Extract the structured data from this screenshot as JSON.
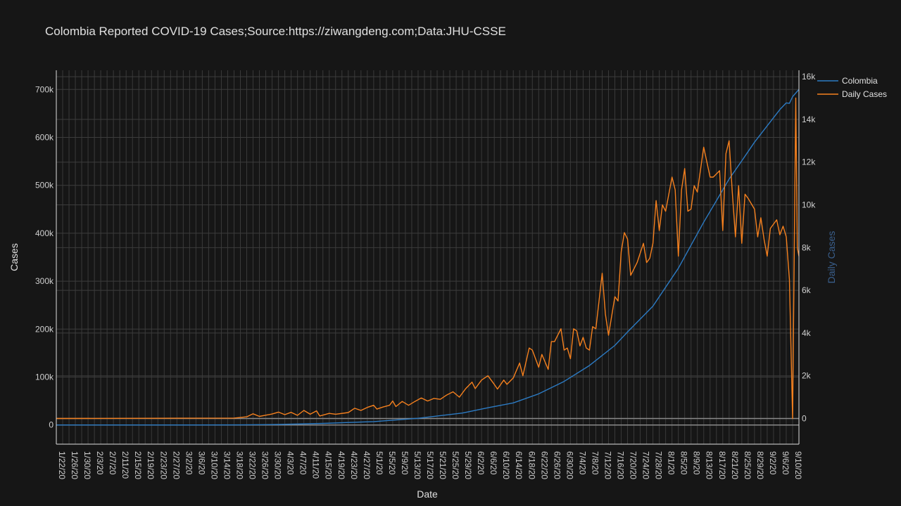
{
  "chart_data": {
    "type": "line",
    "title": "Colombia Reported COVID-19 Cases;Source:https://ziwangdeng.com;Data:JHU-CSSE",
    "xlabel": "Date",
    "ylabel": "Cases",
    "y2label": "Daily Cases",
    "x_start": "2020-01-22",
    "x_end": "2020-09-12",
    "x_tick_labels": [
      "1/22/20",
      "1/26/20",
      "1/30/20",
      "2/3/20",
      "2/7/20",
      "2/11/20",
      "2/15/20",
      "2/19/20",
      "2/23/20",
      "2/27/20",
      "3/2/20",
      "3/6/20",
      "3/10/20",
      "3/14/20",
      "3/18/20",
      "3/22/20",
      "3/26/20",
      "3/30/20",
      "4/3/20",
      "4/7/20",
      "4/11/20",
      "4/15/20",
      "4/19/20",
      "4/23/20",
      "4/27/20",
      "5/1/20",
      "5/5/20",
      "5/9/20",
      "5/13/20",
      "5/17/20",
      "5/21/20",
      "5/25/20",
      "5/29/20",
      "6/2/20",
      "6/6/20",
      "6/10/20",
      "6/14/20",
      "6/18/20",
      "6/22/20",
      "6/26/20",
      "6/30/20",
      "7/4/20",
      "7/8/20",
      "7/12/20",
      "7/16/20",
      "7/20/20",
      "7/24/20",
      "7/28/20",
      "8/1/20",
      "8/5/20",
      "8/9/20",
      "8/13/20",
      "8/17/20",
      "8/21/20",
      "8/25/20",
      "8/29/20",
      "9/2/20",
      "9/6/20",
      "9/10/20"
    ],
    "y_left_ticks": [
      {
        "v": 0,
        "label": "0"
      },
      {
        "v": 100000,
        "label": "100k"
      },
      {
        "v": 200000,
        "label": "200k"
      },
      {
        "v": 300000,
        "label": "300k"
      },
      {
        "v": 400000,
        "label": "400k"
      },
      {
        "v": 500000,
        "label": "500k"
      },
      {
        "v": 600000,
        "label": "600k"
      },
      {
        "v": 700000,
        "label": "700k"
      }
    ],
    "y_right_ticks": [
      {
        "v": 0,
        "label": "0"
      },
      {
        "v": 2000,
        "label": "2k"
      },
      {
        "v": 4000,
        "label": "4k"
      },
      {
        "v": 6000,
        "label": "6k"
      },
      {
        "v": 8000,
        "label": "8k"
      },
      {
        "v": 10000,
        "label": "10k"
      },
      {
        "v": 12000,
        "label": "12k"
      },
      {
        "v": 14000,
        "label": "14k"
      },
      {
        "v": 16000,
        "label": "16k"
      }
    ],
    "ylim": [
      -40000,
      740000
    ],
    "y2lim": [
      -1200,
      16300
    ],
    "grid": true,
    "legend_position": "top-right",
    "series": [
      {
        "name": "Colombia",
        "axis": "left",
        "color": "#2c7bc4",
        "points": [
          [
            "2020-01-22",
            0
          ],
          [
            "2020-03-06",
            0
          ],
          [
            "2020-03-20",
            200
          ],
          [
            "2020-04-01",
            1000
          ],
          [
            "2020-04-15",
            3300
          ],
          [
            "2020-05-01",
            7000
          ],
          [
            "2020-05-15",
            14000
          ],
          [
            "2020-05-29",
            25000
          ],
          [
            "2020-06-06",
            36000
          ],
          [
            "2020-06-14",
            46000
          ],
          [
            "2020-06-22",
            65000
          ],
          [
            "2020-06-30",
            91000
          ],
          [
            "2020-07-08",
            124000
          ],
          [
            "2020-07-16",
            166000
          ],
          [
            "2020-07-20",
            194000
          ],
          [
            "2020-07-28",
            248000
          ],
          [
            "2020-08-05",
            327000
          ],
          [
            "2020-08-13",
            423000
          ],
          [
            "2020-08-17",
            468000
          ],
          [
            "2020-08-21",
            513000
          ],
          [
            "2020-08-25",
            551000
          ],
          [
            "2020-08-29",
            590000
          ],
          [
            "2020-09-02",
            624000
          ],
          [
            "2020-09-06",
            658000
          ],
          [
            "2020-09-08",
            672000
          ],
          [
            "2020-09-09",
            671000
          ],
          [
            "2020-09-10",
            685000
          ],
          [
            "2020-09-12",
            700000
          ]
        ]
      },
      {
        "name": "Daily Cases",
        "axis": "right",
        "color": "#f5801e",
        "points": [
          [
            "2020-01-22",
            0
          ],
          [
            "2020-03-18",
            20
          ],
          [
            "2020-03-22",
            80
          ],
          [
            "2020-03-24",
            220
          ],
          [
            "2020-03-26",
            100
          ],
          [
            "2020-03-30",
            210
          ],
          [
            "2020-04-01",
            300
          ],
          [
            "2020-04-03",
            180
          ],
          [
            "2020-04-05",
            290
          ],
          [
            "2020-04-07",
            150
          ],
          [
            "2020-04-09",
            380
          ],
          [
            "2020-04-11",
            200
          ],
          [
            "2020-04-13",
            360
          ],
          [
            "2020-04-14",
            120
          ],
          [
            "2020-04-17",
            240
          ],
          [
            "2020-04-19",
            200
          ],
          [
            "2020-04-23",
            280
          ],
          [
            "2020-04-25",
            480
          ],
          [
            "2020-04-27",
            380
          ],
          [
            "2020-04-29",
            520
          ],
          [
            "2020-05-01",
            620
          ],
          [
            "2020-05-02",
            440
          ],
          [
            "2020-05-04",
            540
          ],
          [
            "2020-05-06",
            620
          ],
          [
            "2020-05-07",
            820
          ],
          [
            "2020-05-08",
            560
          ],
          [
            "2020-05-10",
            800
          ],
          [
            "2020-05-12",
            620
          ],
          [
            "2020-05-14",
            800
          ],
          [
            "2020-05-16",
            960
          ],
          [
            "2020-05-18",
            820
          ],
          [
            "2020-05-20",
            940
          ],
          [
            "2020-05-22",
            900
          ],
          [
            "2020-05-24",
            1100
          ],
          [
            "2020-05-26",
            1250
          ],
          [
            "2020-05-28",
            1000
          ],
          [
            "2020-05-30",
            1400
          ],
          [
            "2020-06-01",
            1700
          ],
          [
            "2020-06-02",
            1400
          ],
          [
            "2020-06-04",
            1800
          ],
          [
            "2020-06-06",
            2000
          ],
          [
            "2020-06-08",
            1600
          ],
          [
            "2020-06-09",
            1380
          ],
          [
            "2020-06-11",
            1800
          ],
          [
            "2020-06-12",
            1600
          ],
          [
            "2020-06-14",
            1900
          ],
          [
            "2020-06-16",
            2600
          ],
          [
            "2020-06-17",
            2000
          ],
          [
            "2020-06-19",
            3300
          ],
          [
            "2020-06-20",
            3200
          ],
          [
            "2020-06-22",
            2400
          ],
          [
            "2020-06-23",
            3000
          ],
          [
            "2020-06-25",
            2300
          ],
          [
            "2020-06-26",
            3600
          ],
          [
            "2020-06-27",
            3600
          ],
          [
            "2020-06-29",
            4200
          ],
          [
            "2020-06-30",
            3200
          ],
          [
            "2020-07-01",
            3300
          ],
          [
            "2020-07-02",
            2800
          ],
          [
            "2020-07-03",
            4200
          ],
          [
            "2020-07-04",
            4100
          ],
          [
            "2020-07-05",
            3400
          ],
          [
            "2020-07-06",
            3800
          ],
          [
            "2020-07-07",
            3300
          ],
          [
            "2020-07-08",
            3200
          ],
          [
            "2020-07-09",
            4300
          ],
          [
            "2020-07-10",
            4200
          ],
          [
            "2020-07-12",
            6800
          ],
          [
            "2020-07-13",
            4900
          ],
          [
            "2020-07-14",
            3900
          ],
          [
            "2020-07-16",
            5700
          ],
          [
            "2020-07-17",
            5500
          ],
          [
            "2020-07-18",
            7800
          ],
          [
            "2020-07-19",
            8700
          ],
          [
            "2020-07-20",
            8400
          ],
          [
            "2020-07-21",
            6700
          ],
          [
            "2020-07-23",
            7300
          ],
          [
            "2020-07-25",
            8200
          ],
          [
            "2020-07-26",
            7300
          ],
          [
            "2020-07-27",
            7500
          ],
          [
            "2020-07-28",
            8200
          ],
          [
            "2020-07-29",
            10200
          ],
          [
            "2020-07-30",
            8800
          ],
          [
            "2020-07-31",
            10000
          ],
          [
            "2020-08-01",
            9700
          ],
          [
            "2020-08-03",
            11300
          ],
          [
            "2020-08-04",
            10700
          ],
          [
            "2020-08-05",
            7600
          ],
          [
            "2020-08-06",
            10700
          ],
          [
            "2020-08-07",
            11700
          ],
          [
            "2020-08-08",
            9700
          ],
          [
            "2020-08-09",
            9800
          ],
          [
            "2020-08-10",
            10900
          ],
          [
            "2020-08-11",
            10600
          ],
          [
            "2020-08-13",
            12700
          ],
          [
            "2020-08-15",
            11300
          ],
          [
            "2020-08-16",
            11300
          ],
          [
            "2020-08-18",
            11600
          ],
          [
            "2020-08-19",
            8800
          ],
          [
            "2020-08-20",
            12400
          ],
          [
            "2020-08-21",
            13000
          ],
          [
            "2020-08-22",
            10600
          ],
          [
            "2020-08-23",
            8500
          ],
          [
            "2020-08-24",
            10900
          ],
          [
            "2020-08-25",
            8200
          ],
          [
            "2020-08-26",
            10500
          ],
          [
            "2020-08-27",
            10300
          ],
          [
            "2020-08-29",
            9800
          ],
          [
            "2020-08-30",
            8500
          ],
          [
            "2020-08-31",
            9400
          ],
          [
            "2020-09-01",
            8400
          ],
          [
            "2020-09-02",
            7600
          ],
          [
            "2020-09-03",
            8900
          ],
          [
            "2020-09-05",
            9300
          ],
          [
            "2020-09-06",
            8600
          ],
          [
            "2020-09-07",
            9000
          ],
          [
            "2020-09-08",
            8500
          ],
          [
            "2020-09-09",
            6500
          ],
          [
            "2020-09-10",
            0
          ],
          [
            "2020-09-11",
            15000
          ],
          [
            "2020-09-11T12:00",
            8000
          ],
          [
            "2020-09-12",
            7600
          ]
        ]
      }
    ]
  }
}
